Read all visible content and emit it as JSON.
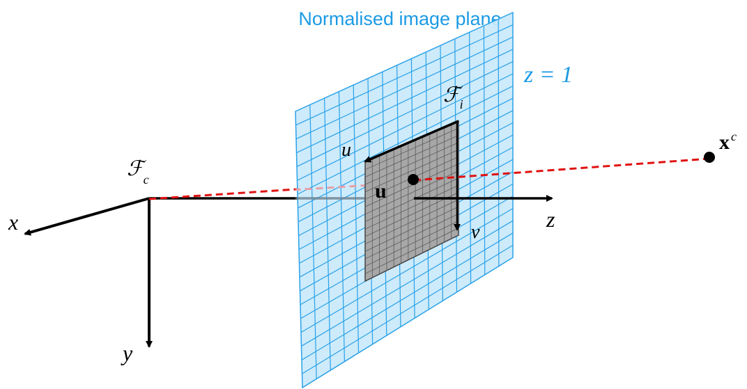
{
  "title": "Normalised image plane",
  "plane_equation": "z = 1",
  "camera_frame": {
    "symbol": "ℱ",
    "subscript": "c"
  },
  "image_frame": {
    "symbol": "ℱ",
    "subscript": "i"
  },
  "axes": {
    "x": "x",
    "y": "y",
    "z": "z"
  },
  "image_axes": {
    "u": "u",
    "v": "v"
  },
  "point_label": "u",
  "world_point": {
    "symbol": "x",
    "superscript": "c"
  },
  "colors": {
    "plane_fill": "#c9e9fb",
    "plane_grid": "#2aa1e8",
    "title": "#1b9ae4",
    "sensor_fill": "#a7a7a7",
    "sensor_grid": "#5a5a5a",
    "ray": "#e01010",
    "axis": "#000000"
  }
}
